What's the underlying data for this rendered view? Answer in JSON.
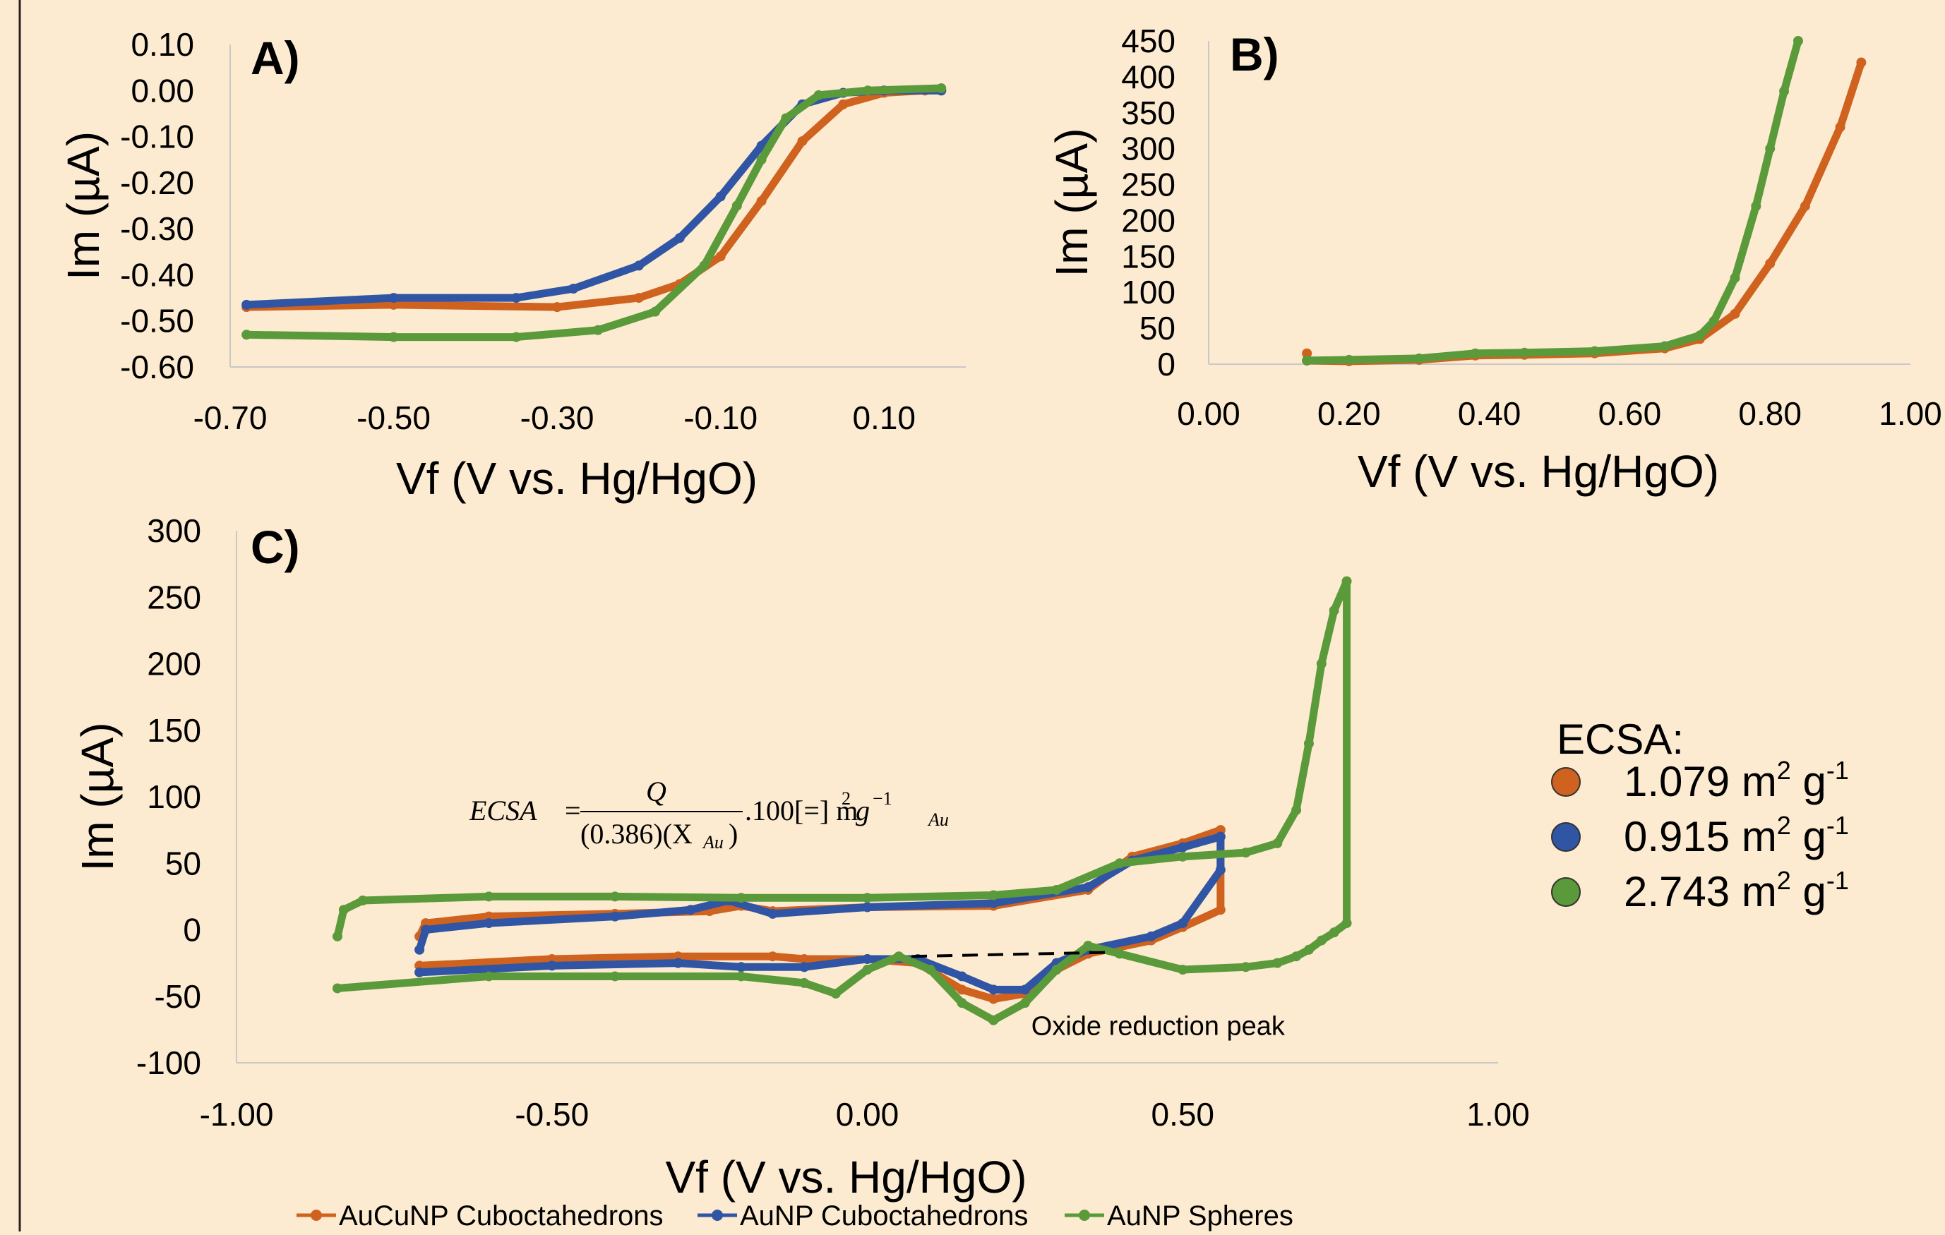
{
  "legend": {
    "title": "ECSA:",
    "items": [
      {
        "value": "1.079",
        "unit": "m",
        "sup1": "2",
        "mid": " g",
        "sup2": "-1",
        "color": "#d0621f"
      },
      {
        "value": "0.915",
        "unit": "m",
        "sup1": "2",
        "mid": " g",
        "sup2": "-1",
        "color": "#2f55a4"
      },
      {
        "value": "2.743",
        "unit": "m",
        "sup1": "2",
        "mid": " g",
        "sup2": "-1",
        "color": "#5a9a3a"
      }
    ]
  },
  "series_legend": [
    "AuCuNP Cuboctahedrons",
    "AuNP Cuboctahedrons",
    "AuNP Spheres"
  ],
  "colors": {
    "aucu_cubo": "#d0621f",
    "au_cubo": "#2f55a4",
    "au_spheres": "#5a9a3a",
    "background": "#fcebd0"
  },
  "equation": {
    "lhs": "ECSA",
    "numerator": "Q",
    "denominator": "(0.386)(X",
    "denominator_sub": "Au",
    "tail": ".100[=] m",
    "tail_sup": "2",
    "tail_g": "g",
    "tail_g_sup": "−1",
    "tail_sub": "Au"
  },
  "annotation": "Oxide reduction peak",
  "chart_data": [
    {
      "type": "line",
      "panel": "A)",
      "xlabel": "Vf (V vs. Hg/HgO)",
      "ylabel": "Im (µA)",
      "xlim": [
        -0.7,
        0.2
      ],
      "ylim": [
        -0.6,
        0.1
      ],
      "xticks": [
        "-0.70",
        "-0.50",
        "-0.30",
        "-0.10",
        "0.10"
      ],
      "yticks": [
        "0.10",
        "0.00",
        "-0.10",
        "-0.20",
        "-0.30",
        "-0.40",
        "-0.50",
        "-0.60"
      ],
      "series": [
        {
          "name": "AuCuNP Cuboctahedrons",
          "color": "#d0621f",
          "x": [
            -0.68,
            -0.5,
            -0.3,
            -0.2,
            -0.15,
            -0.1,
            -0.05,
            0,
            0.05,
            0.1,
            0.15,
            0.17
          ],
          "y": [
            -0.47,
            -0.465,
            -0.47,
            -0.45,
            -0.42,
            -0.36,
            -0.24,
            -0.11,
            -0.03,
            -0.005,
            0,
            0
          ]
        },
        {
          "name": "AuNP Cuboctahedrons",
          "color": "#2f55a4",
          "x": [
            -0.68,
            -0.5,
            -0.35,
            -0.28,
            -0.2,
            -0.15,
            -0.1,
            -0.05,
            0,
            0.05,
            0.1,
            0.17
          ],
          "y": [
            -0.465,
            -0.45,
            -0.45,
            -0.43,
            -0.38,
            -0.32,
            -0.23,
            -0.12,
            -0.03,
            -0.005,
            0,
            0
          ]
        },
        {
          "name": "AuNP Spheres",
          "color": "#5a9a3a",
          "x": [
            -0.68,
            -0.5,
            -0.35,
            -0.25,
            -0.18,
            -0.12,
            -0.08,
            -0.05,
            -0.02,
            0.02,
            0.08,
            0.17
          ],
          "y": [
            -0.53,
            -0.535,
            -0.535,
            -0.52,
            -0.48,
            -0.38,
            -0.25,
            -0.15,
            -0.06,
            -0.01,
            0,
            0.005
          ]
        }
      ]
    },
    {
      "type": "line",
      "panel": "B)",
      "xlabel": "Vf (V vs. Hg/HgO)",
      "ylabel": "Im (µA)",
      "xlim": [
        0,
        1
      ],
      "ylim": [
        0,
        450
      ],
      "xticks": [
        "0.00",
        "0.20",
        "0.40",
        "0.60",
        "0.80",
        "1.00"
      ],
      "yticks": [
        "450",
        "400",
        "350",
        "300",
        "250",
        "200",
        "150",
        "100",
        "50",
        "0"
      ],
      "series": [
        {
          "name": "AuCuNP Cuboctahedrons",
          "color": "#d0621f",
          "x": [
            0.14,
            0.14,
            0.2,
            0.3,
            0.38,
            0.45,
            0.55,
            0.65,
            0.7,
            0.75,
            0.8,
            0.85,
            0.9,
            0.93
          ],
          "y": [
            15,
            5,
            4,
            6,
            12,
            13,
            15,
            22,
            35,
            70,
            140,
            220,
            330,
            420
          ]
        },
        {
          "name": "AuNP Spheres",
          "color": "#5a9a3a",
          "x": [
            0.14,
            0.2,
            0.3,
            0.38,
            0.45,
            0.55,
            0.65,
            0.7,
            0.72,
            0.75,
            0.78,
            0.8,
            0.82,
            0.84
          ],
          "y": [
            5,
            6,
            8,
            15,
            16,
            18,
            25,
            40,
            60,
            120,
            220,
            300,
            380,
            450
          ]
        }
      ]
    },
    {
      "type": "line",
      "panel": "C)",
      "xlabel": "Vf (V vs. Hg/HgO)",
      "ylabel": "Im (µA)",
      "xlim": [
        -1,
        1
      ],
      "ylim": [
        -100,
        300
      ],
      "xticks": [
        "-1.00",
        "-0.50",
        "0.00",
        "0.50",
        "1.00"
      ],
      "yticks": [
        "300",
        "250",
        "200",
        "150",
        "100",
        "50",
        "0",
        "-50",
        "-100"
      ],
      "series": [
        {
          "name": "AuCuNP Cuboctahedrons",
          "color": "#d0621f",
          "x": [
            -0.71,
            -0.7,
            -0.6,
            -0.4,
            -0.25,
            -0.2,
            -0.15,
            0,
            0.2,
            0.35,
            0.42,
            0.5,
            0.56,
            0.56,
            0.5,
            0.45,
            0.35,
            0.3,
            0.25,
            0.2,
            0.15,
            0.08,
            0.0,
            -0.1,
            -0.15,
            -0.3,
            -0.5,
            -0.71
          ],
          "y": [
            -5,
            5,
            10,
            12,
            14,
            18,
            14,
            17,
            18,
            30,
            55,
            65,
            75,
            15,
            2,
            -8,
            -18,
            -30,
            -48,
            -52,
            -45,
            -25,
            -22,
            -22,
            -20,
            -20,
            -22,
            -27
          ]
        },
        {
          "name": "AuNP Cuboctahedrons",
          "color": "#2f55a4",
          "x": [
            -0.71,
            -0.7,
            -0.6,
            -0.4,
            -0.28,
            -0.22,
            -0.15,
            0,
            0.2,
            0.35,
            0.42,
            0.5,
            0.56,
            0.56,
            0.5,
            0.45,
            0.35,
            0.3,
            0.25,
            0.2,
            0.15,
            0.08,
            0.0,
            -0.1,
            -0.2,
            -0.3,
            -0.5,
            -0.71
          ],
          "y": [
            -15,
            0,
            5,
            10,
            15,
            22,
            12,
            17,
            20,
            32,
            52,
            62,
            70,
            45,
            5,
            -5,
            -15,
            -25,
            -45,
            -45,
            -35,
            -22,
            -22,
            -28,
            -28,
            -25,
            -27,
            -32
          ]
        },
        {
          "name": "AuNP Spheres",
          "color": "#5a9a3a",
          "x": [
            -0.84,
            -0.83,
            -0.8,
            -0.6,
            -0.4,
            -0.2,
            0,
            0.2,
            0.3,
            0.4,
            0.5,
            0.6,
            0.65,
            0.68,
            0.7,
            0.72,
            0.74,
            0.76,
            0.76,
            0.74,
            0.72,
            0.7,
            0.68,
            0.65,
            0.6,
            0.5,
            0.4,
            0.35,
            0.3,
            0.25,
            0.2,
            0.15,
            0.1,
            0.05,
            0.0,
            -0.05,
            -0.1,
            -0.2,
            -0.4,
            -0.6,
            -0.84
          ],
          "y": [
            -5,
            15,
            22,
            25,
            25,
            24,
            24,
            26,
            30,
            50,
            55,
            58,
            65,
            90,
            140,
            200,
            240,
            262,
            5,
            -2,
            -8,
            -15,
            -20,
            -25,
            -28,
            -30,
            -18,
            -12,
            -30,
            -55,
            -68,
            -55,
            -30,
            -20,
            -30,
            -48,
            -40,
            -35,
            -35,
            -35,
            -44
          ]
        }
      ],
      "guide": {
        "style": "dashed",
        "x": [
          0.07,
          0.38
        ],
        "y": [
          -20,
          -17
        ]
      }
    }
  ]
}
